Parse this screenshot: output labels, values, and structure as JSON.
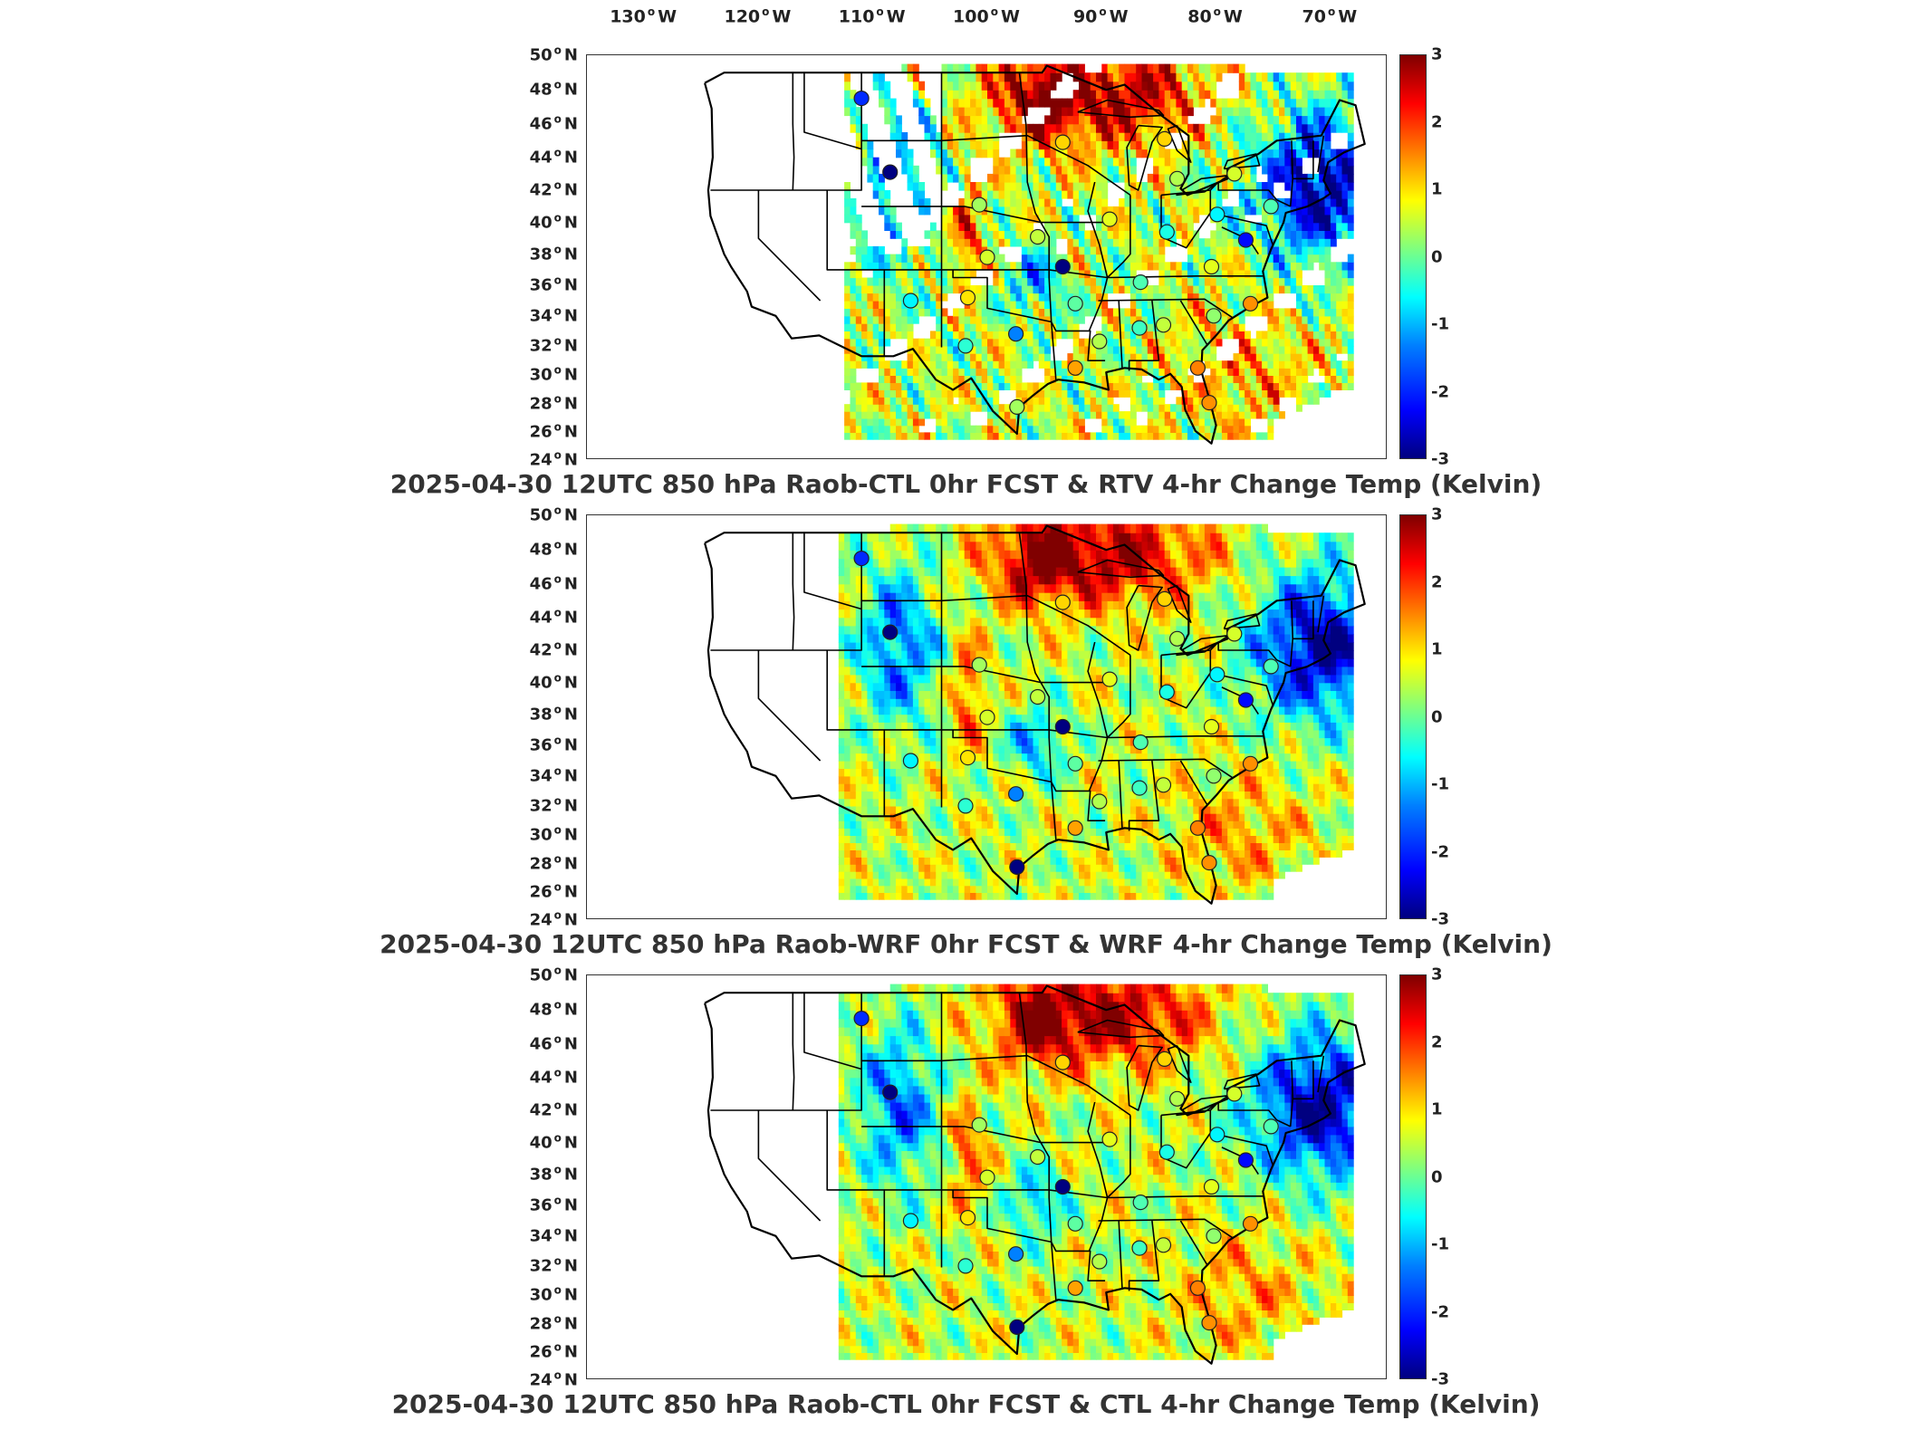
{
  "longitude_ticks": [
    "130",
    "120",
    "110",
    "100",
    "90",
    "80",
    "70"
  ],
  "lon_suffix": "W",
  "latitude_ticks": [
    "50",
    "48",
    "46",
    "44",
    "42",
    "40",
    "38",
    "36",
    "34",
    "32",
    "30",
    "28",
    "26",
    "24"
  ],
  "lat_suffix": "N",
  "colorbar": {
    "ticks": [
      "3",
      "2",
      "1",
      "0",
      "-1",
      "-2",
      "-3"
    ],
    "range": [
      -3,
      3
    ],
    "colormap": "jet",
    "colors": [
      "#00007f",
      "#0000ff",
      "#007fff",
      "#00ffff",
      "#7fff7f",
      "#ffff00",
      "#ff7f00",
      "#ff0000",
      "#7f0000"
    ]
  },
  "panels": [
    {
      "title": "2025-04-30 12UTC 850 hPa Raob-CTL 0hr FCST & RTV 4-hr Change Temp (Kelvin)",
      "field": "RTV 4-hr Change Temp",
      "style": "satellite retrieval with gaps"
    },
    {
      "title": "2025-04-30 12UTC 850 hPa Raob-WRF 0hr FCST & WRF 4-hr Change Temp (Kelvin)",
      "field": "WRF 4-hr Change Temp",
      "style": "continuous model field"
    },
    {
      "title": "2025-04-30 12UTC 850 hPa Raob-CTL 0hr FCST & CTL 4-hr Change Temp (Kelvin)",
      "field": "CTL 4-hr Change Temp",
      "style": "continuous model field"
    }
  ],
  "raob_stations": [
    {
      "lon": -111.0,
      "lat": 47.5,
      "v": [
        -2.0,
        -2.0,
        -2.0
      ]
    },
    {
      "lon": -108.5,
      "lat": 43.1,
      "v": [
        -3.0,
        -3.0,
        -3.0
      ]
    },
    {
      "lon": -106.7,
      "lat": 35.0,
      "v": [
        -0.8,
        -0.8,
        -0.8
      ]
    },
    {
      "lon": -101.7,
      "lat": 35.2,
      "v": [
        0.9,
        0.9,
        0.9
      ]
    },
    {
      "lon": -100.7,
      "lat": 41.1,
      "v": [
        0.2,
        0.2,
        0.2
      ]
    },
    {
      "lon": -100.0,
      "lat": 37.8,
      "v": [
        0.5,
        0.5,
        0.5
      ]
    },
    {
      "lon": -101.9,
      "lat": 32.0,
      "v": [
        -0.5,
        -0.5,
        -0.5
      ]
    },
    {
      "lon": -97.5,
      "lat": 32.8,
      "v": [
        -1.5,
        -1.5,
        -1.5
      ]
    },
    {
      "lon": -97.4,
      "lat": 27.8,
      "v": [
        0.2,
        -3.0,
        -3.0
      ]
    },
    {
      "lon": -95.6,
      "lat": 39.1,
      "v": [
        0.4,
        0.4,
        0.4
      ]
    },
    {
      "lon": -93.4,
      "lat": 44.9,
      "v": [
        1.0,
        1.0,
        1.0
      ]
    },
    {
      "lon": -93.4,
      "lat": 37.2,
      "v": [
        -3.0,
        -3.0,
        -3.0
      ]
    },
    {
      "lon": -92.3,
      "lat": 34.8,
      "v": [
        -0.2,
        -0.2,
        -0.2
      ]
    },
    {
      "lon": -92.3,
      "lat": 30.5,
      "v": [
        1.3,
        1.3,
        1.3
      ]
    },
    {
      "lon": -90.2,
      "lat": 32.3,
      "v": [
        0.3,
        0.3,
        0.3
      ]
    },
    {
      "lon": -89.3,
      "lat": 40.2,
      "v": [
        0.6,
        0.6,
        0.6
      ]
    },
    {
      "lon": -86.6,
      "lat": 36.2,
      "v": [
        -0.3,
        -0.3,
        -0.3
      ]
    },
    {
      "lon": -86.7,
      "lat": 33.2,
      "v": [
        -0.4,
        -0.4,
        -0.4
      ]
    },
    {
      "lon": -84.5,
      "lat": 45.1,
      "v": [
        1.0,
        1.0,
        1.0
      ]
    },
    {
      "lon": -84.6,
      "lat": 33.4,
      "v": [
        0.4,
        0.4,
        0.4
      ]
    },
    {
      "lon": -84.3,
      "lat": 39.4,
      "v": [
        -0.6,
        -0.6,
        -0.6
      ]
    },
    {
      "lon": -83.4,
      "lat": 42.7,
      "v": [
        0.3,
        0.3,
        0.3
      ]
    },
    {
      "lon": -81.6,
      "lat": 30.5,
      "v": [
        1.5,
        1.5,
        1.5
      ]
    },
    {
      "lon": -80.6,
      "lat": 28.1,
      "v": [
        1.4,
        1.4,
        1.4
      ]
    },
    {
      "lon": -80.2,
      "lat": 34.0,
      "v": [
        0.1,
        0.1,
        0.1
      ]
    },
    {
      "lon": -80.4,
      "lat": 37.2,
      "v": [
        0.6,
        0.6,
        0.6
      ]
    },
    {
      "lon": -79.9,
      "lat": 40.5,
      "v": [
        -0.8,
        -0.8,
        -0.8
      ]
    },
    {
      "lon": -77.0,
      "lat": 34.8,
      "v": [
        1.4,
        1.4,
        1.4
      ]
    },
    {
      "lon": -77.4,
      "lat": 38.9,
      "v": [
        -2.2,
        -2.2,
        -2.2
      ]
    },
    {
      "lon": -75.2,
      "lat": 41.0,
      "v": [
        -0.3,
        -0.3,
        -0.3
      ]
    },
    {
      "lon": -78.4,
      "lat": 43.0,
      "v": [
        0.5,
        0.5,
        0.5
      ]
    }
  ]
}
